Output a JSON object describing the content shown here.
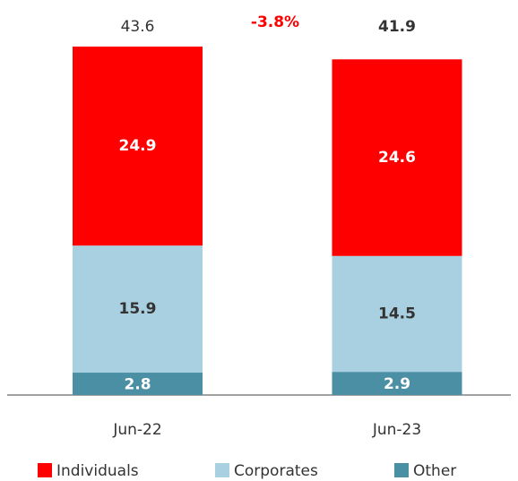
{
  "chart_data": {
    "type": "stacked_bar",
    "categories": [
      "Jun-22",
      "Jun-23"
    ],
    "series": [
      {
        "name": "Other",
        "color": "#4a8fa3",
        "values": [
          2.8,
          2.9
        ]
      },
      {
        "name": "Corporates",
        "color": "#a8d0e0",
        "values": [
          15.9,
          14.5
        ]
      },
      {
        "name": "Individuals",
        "color": "#ff0000",
        "values": [
          24.9,
          24.6
        ]
      }
    ],
    "totals": [
      43.6,
      41.9
    ],
    "annotation": "-3.8%"
  }
}
